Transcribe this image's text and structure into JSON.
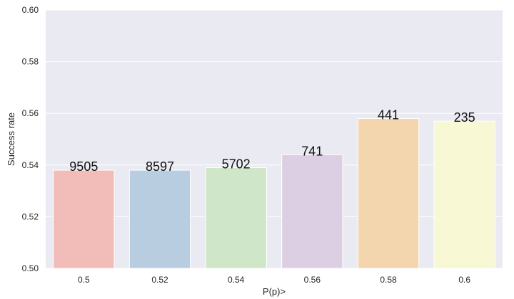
{
  "chart_data": {
    "type": "bar",
    "title": "",
    "xlabel": "P(p)>",
    "ylabel": "Success rate",
    "categories": [
      "0.5",
      "0.52",
      "0.54",
      "0.56",
      "0.58",
      "0.6"
    ],
    "values": [
      0.538,
      0.538,
      0.539,
      0.544,
      0.558,
      0.557
    ],
    "data_labels": [
      "9505",
      "8597",
      "5702",
      "741",
      "441",
      "235"
    ],
    "ylim": [
      0.5,
      0.6
    ],
    "yticks": [
      0.5,
      0.52,
      0.54,
      0.56,
      0.58,
      0.6
    ],
    "ytick_labels": [
      "0.50",
      "0.52",
      "0.54",
      "0.56",
      "0.58",
      "0.60"
    ],
    "grid": true,
    "colors": {
      "background": "#eaeaf2",
      "grid": "#ffffff",
      "bars": [
        "#f2bcb9",
        "#b9cde0",
        "#cfe6c8",
        "#dccfe3",
        "#f3d6ae",
        "#f8f8d4"
      ]
    }
  }
}
